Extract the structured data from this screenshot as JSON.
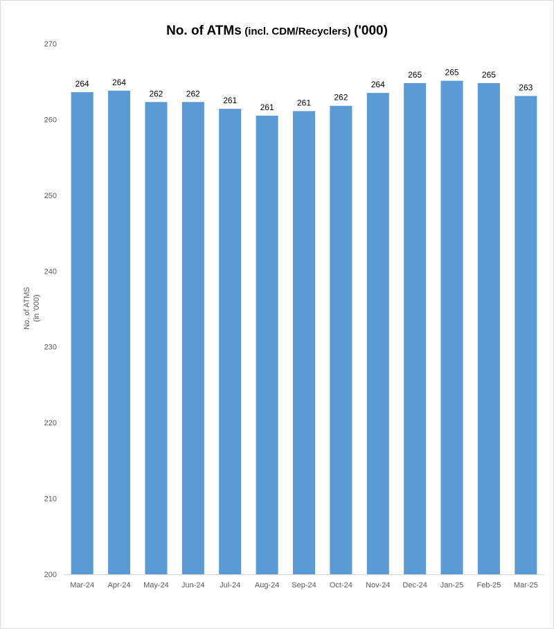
{
  "chart_data": {
    "type": "bar",
    "title": {
      "main": "No. of ATMs",
      "sub": "(incl. CDM/Recyclers)",
      "unit": "('000)"
    },
    "ylabel_lines": [
      "No. of ATMS",
      "(in '000)"
    ],
    "categories": [
      "Mar-24",
      "Apr-24",
      "May-24",
      "Jun-24",
      "Jul-24",
      "Aug-24",
      "Sep-24",
      "Oct-24",
      "Nov-24",
      "Dec-24",
      "Jan-25",
      "Feb-25",
      "Mar-25"
    ],
    "values": [
      263.6,
      263.8,
      262.3,
      262.3,
      261.4,
      260.5,
      261.1,
      261.8,
      263.5,
      264.8,
      265.1,
      264.8,
      263.1
    ],
    "data_labels": [
      "264",
      "264",
      "262",
      "262",
      "261",
      "261",
      "261",
      "262",
      "264",
      "265",
      "265",
      "265",
      "263"
    ],
    "ylim": [
      200,
      270
    ],
    "yticks": [
      200,
      210,
      220,
      230,
      240,
      250,
      260,
      270
    ],
    "bar_color": "#5b9bd5",
    "grid": false,
    "legend": "none"
  }
}
